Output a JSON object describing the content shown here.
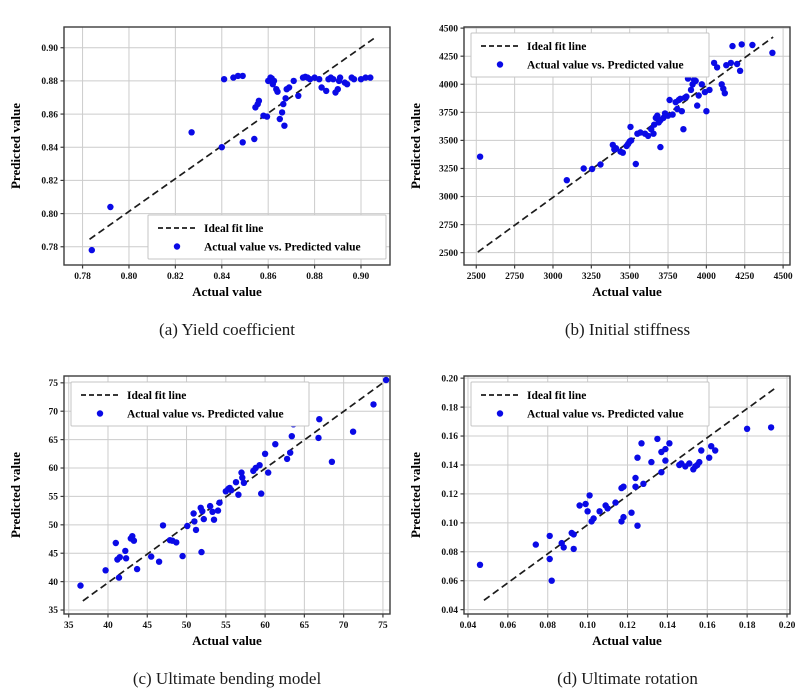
{
  "figure": {
    "background": "#ffffff",
    "description": "2x2 grid of scatter subplots comparing actual vs predicted values"
  },
  "colors": {
    "dot": "#0a0ae6",
    "ideal_line": "#1c1c1c",
    "grid": "#cccccc",
    "spine": "#3c3c3c",
    "tick": "#333333",
    "legend_border": "#c4c4c4",
    "plot_bg": "#ffffff"
  },
  "chart_data": [
    {
      "type": "scatter",
      "caption": "(a) Yield coefficient",
      "xlabel": "Actual value",
      "ylabel": "Predicted value",
      "xlim": [
        0.772,
        0.9125
      ],
      "ylim": [
        0.769,
        0.9125
      ],
      "xticks": [
        0.78,
        0.8,
        0.82,
        0.84,
        0.86,
        0.88,
        0.9
      ],
      "xtick_labels": [
        "0.78",
        "0.80",
        "0.82",
        "0.84",
        "0.86",
        "0.88",
        "0.90"
      ],
      "yticks": [
        0.78,
        0.8,
        0.82,
        0.84,
        0.86,
        0.88,
        0.9
      ],
      "ytick_labels": [
        "0.78",
        "0.80",
        "0.82",
        "0.84",
        "0.86",
        "0.88",
        "0.90"
      ],
      "grid": true,
      "legend": {
        "position": "lower right",
        "items": [
          "Ideal fit line",
          "Actual value vs. Predicted value"
        ]
      },
      "ideal_line": [
        [
          0.783,
          0.7845
        ],
        [
          0.9055,
          0.9055
        ]
      ],
      "points": [
        [
          0.784,
          0.778
        ],
        [
          0.792,
          0.804
        ],
        [
          0.827,
          0.849
        ],
        [
          0.84,
          0.84
        ],
        [
          0.841,
          0.881
        ],
        [
          0.845,
          0.882
        ],
        [
          0.847,
          0.883
        ],
        [
          0.849,
          0.883
        ],
        [
          0.849,
          0.843
        ],
        [
          0.854,
          0.845
        ],
        [
          0.8545,
          0.864
        ],
        [
          0.8555,
          0.866
        ],
        [
          0.856,
          0.868
        ],
        [
          0.858,
          0.859
        ],
        [
          0.8595,
          0.8585
        ],
        [
          0.86,
          0.88
        ],
        [
          0.861,
          0.882
        ],
        [
          0.8615,
          0.8815
        ],
        [
          0.862,
          0.878
        ],
        [
          0.8625,
          0.88
        ],
        [
          0.8635,
          0.875
        ],
        [
          0.864,
          0.8735
        ],
        [
          0.865,
          0.857
        ],
        [
          0.866,
          0.861
        ],
        [
          0.867,
          0.853
        ],
        [
          0.8665,
          0.866
        ],
        [
          0.8675,
          0.8695
        ],
        [
          0.868,
          0.875
        ],
        [
          0.869,
          0.876
        ],
        [
          0.871,
          0.88
        ],
        [
          0.873,
          0.871
        ],
        [
          0.875,
          0.882
        ],
        [
          0.876,
          0.8825
        ],
        [
          0.877,
          0.882
        ],
        [
          0.878,
          0.881
        ],
        [
          0.88,
          0.882
        ],
        [
          0.882,
          0.881
        ],
        [
          0.883,
          0.876
        ],
        [
          0.885,
          0.874
        ],
        [
          0.886,
          0.881
        ],
        [
          0.887,
          0.882
        ],
        [
          0.888,
          0.881
        ],
        [
          0.889,
          0.873
        ],
        [
          0.89,
          0.875
        ],
        [
          0.8905,
          0.88
        ],
        [
          0.891,
          0.882
        ],
        [
          0.893,
          0.879
        ],
        [
          0.894,
          0.878
        ],
        [
          0.896,
          0.882
        ],
        [
          0.897,
          0.881
        ],
        [
          0.9,
          0.881
        ],
        [
          0.902,
          0.882
        ],
        [
          0.904,
          0.882
        ]
      ]
    },
    {
      "type": "scatter",
      "caption": "(b) Initial stiffness",
      "xlabel": "Actual value",
      "ylabel": "Predicted value",
      "xlim": [
        2420,
        4545
      ],
      "ylim": [
        2390,
        4510
      ],
      "xticks": [
        2500,
        2750,
        3000,
        3250,
        3500,
        3750,
        4000,
        4250,
        4500
      ],
      "xtick_labels": [
        "2500",
        "2750",
        "3000",
        "3250",
        "3500",
        "3750",
        "4000",
        "4250",
        "4500"
      ],
      "yticks": [
        2500,
        2750,
        3000,
        3250,
        3500,
        3750,
        4000,
        4250,
        4500
      ],
      "ytick_labels": [
        "2500",
        "2750",
        "3000",
        "3250",
        "3500",
        "3750",
        "4000",
        "4250",
        "4500"
      ],
      "grid": true,
      "legend": {
        "position": "upper left",
        "items": [
          "Ideal fit line",
          "Actual value vs. Predicted value"
        ]
      },
      "ideal_line": [
        [
          2510,
          2505
        ],
        [
          4435,
          4420
        ]
      ],
      "points": [
        [
          2525,
          3355
        ],
        [
          3090,
          3145
        ],
        [
          3200,
          3250
        ],
        [
          3255,
          3245
        ],
        [
          3310,
          3285
        ],
        [
          3390,
          3460
        ],
        [
          3400,
          3420
        ],
        [
          3410,
          3430
        ],
        [
          3440,
          3400
        ],
        [
          3455,
          3390
        ],
        [
          3505,
          3620
        ],
        [
          3480,
          3450
        ],
        [
          3490,
          3470
        ],
        [
          3500,
          3490
        ],
        [
          3510,
          3500
        ],
        [
          3540,
          3290
        ],
        [
          3550,
          3560
        ],
        [
          3570,
          3570
        ],
        [
          3600,
          3560
        ],
        [
          3620,
          3540
        ],
        [
          3640,
          3600
        ],
        [
          3655,
          3560
        ],
        [
          3660,
          3640
        ],
        [
          3670,
          3700
        ],
        [
          3680,
          3720
        ],
        [
          3690,
          3660
        ],
        [
          3700,
          3680
        ],
        [
          3700,
          3440
        ],
        [
          3720,
          3700
        ],
        [
          3730,
          3740
        ],
        [
          3750,
          3720
        ],
        [
          3760,
          3860
        ],
        [
          3780,
          3730
        ],
        [
          3800,
          3840
        ],
        [
          3810,
          3780
        ],
        [
          3820,
          3860
        ],
        [
          3830,
          3870
        ],
        [
          3840,
          3760
        ],
        [
          3850,
          3600
        ],
        [
          3860,
          3880
        ],
        [
          3870,
          3890
        ],
        [
          3880,
          4050
        ],
        [
          3900,
          3950
        ],
        [
          3910,
          4000
        ],
        [
          3920,
          4040
        ],
        [
          3930,
          4030
        ],
        [
          3940,
          3810
        ],
        [
          3950,
          3900
        ],
        [
          3970,
          4000
        ],
        [
          3990,
          3930
        ],
        [
          4000,
          3760
        ],
        [
          4020,
          3950
        ],
        [
          4050,
          4190
        ],
        [
          4070,
          4150
        ],
        [
          4100,
          4000
        ],
        [
          4110,
          3960
        ],
        [
          4120,
          3920
        ],
        [
          4130,
          4170
        ],
        [
          4160,
          4190
        ],
        [
          4170,
          4340
        ],
        [
          4200,
          4180
        ],
        [
          4220,
          4120
        ],
        [
          4230,
          4355
        ],
        [
          4300,
          4350
        ],
        [
          4430,
          4280
        ]
      ]
    },
    {
      "type": "scatter",
      "caption": "(c) Ultimate bending model",
      "xlabel": "Actual value",
      "ylabel": "Predicted value",
      "xlim": [
        34.4,
        75.9
      ],
      "ylim": [
        34.3,
        76.2
      ],
      "xticks": [
        35,
        40,
        45,
        50,
        55,
        60,
        65,
        70,
        75
      ],
      "xtick_labels": [
        "35",
        "40",
        "45",
        "50",
        "55",
        "60",
        "65",
        "70",
        "75"
      ],
      "yticks": [
        35,
        40,
        45,
        50,
        55,
        60,
        65,
        70,
        75
      ],
      "ytick_labels": [
        "35",
        "40",
        "45",
        "50",
        "55",
        "60",
        "65",
        "70",
        "75"
      ],
      "grid": true,
      "legend": {
        "position": "upper left",
        "items": [
          "Ideal fit line",
          "Actual value vs. Predicted value"
        ]
      },
      "ideal_line": [
        [
          36.8,
          36.6
        ],
        [
          75.6,
          75.6
        ]
      ],
      "points": [
        [
          36.5,
          39.3
        ],
        [
          39.7,
          42.0
        ],
        [
          41.0,
          46.8
        ],
        [
          41.2,
          43.9
        ],
        [
          41.5,
          44.3
        ],
        [
          41.4,
          40.7
        ],
        [
          42.3,
          44.1
        ],
        [
          42.2,
          45.4
        ],
        [
          42.9,
          47.6
        ],
        [
          43.1,
          48.0
        ],
        [
          43.3,
          47.2
        ],
        [
          43.7,
          42.2
        ],
        [
          45.5,
          44.4
        ],
        [
          46.5,
          43.5
        ],
        [
          47.0,
          49.9
        ],
        [
          47.9,
          47.3
        ],
        [
          48.2,
          47.2
        ],
        [
          48.7,
          46.9
        ],
        [
          49.5,
          44.5
        ],
        [
          50.1,
          49.8
        ],
        [
          50.9,
          52.0
        ],
        [
          51.0,
          50.6
        ],
        [
          51.2,
          49.1
        ],
        [
          51.8,
          53.0
        ],
        [
          52.0,
          52.4
        ],
        [
          52.2,
          51.0
        ],
        [
          51.9,
          45.2
        ],
        [
          53.0,
          53.3
        ],
        [
          53.3,
          52.3
        ],
        [
          53.5,
          50.9
        ],
        [
          54.0,
          52.5
        ],
        [
          54.2,
          53.9
        ],
        [
          55.0,
          55.9
        ],
        [
          55.3,
          56.3
        ],
        [
          55.5,
          56.5
        ],
        [
          55.7,
          56.1
        ],
        [
          56.3,
          57.5
        ],
        [
          56.6,
          55.3
        ],
        [
          57.0,
          59.2
        ],
        [
          57.1,
          58.3
        ],
        [
          57.3,
          57.4
        ],
        [
          58.5,
          59.5
        ],
        [
          58.8,
          60.0
        ],
        [
          59.3,
          60.5
        ],
        [
          59.5,
          55.5
        ],
        [
          60.0,
          62.5
        ],
        [
          60.4,
          59.2
        ],
        [
          61.3,
          64.2
        ],
        [
          62.8,
          61.6
        ],
        [
          63.2,
          62.7
        ],
        [
          63.4,
          65.6
        ],
        [
          63.6,
          67.7
        ],
        [
          66.8,
          65.3
        ],
        [
          66.9,
          68.6
        ],
        [
          68.5,
          61.1
        ],
        [
          71.2,
          66.4
        ],
        [
          73.8,
          71.2
        ],
        [
          75.4,
          75.5
        ]
      ]
    },
    {
      "type": "scatter",
      "caption": "(d) Ultimate rotation",
      "xlabel": "Actual value",
      "ylabel": "Predicted value",
      "xlim": [
        0.038,
        0.2015
      ],
      "ylim": [
        0.037,
        0.2015
      ],
      "xticks": [
        0.04,
        0.06,
        0.08,
        0.1,
        0.12,
        0.14,
        0.16,
        0.18,
        0.2
      ],
      "xtick_labels": [
        "0.04",
        "0.06",
        "0.08",
        "0.10",
        "0.12",
        "0.14",
        "0.16",
        "0.18",
        "0.20"
      ],
      "yticks": [
        0.04,
        0.06,
        0.08,
        0.1,
        0.12,
        0.14,
        0.16,
        0.18,
        0.2
      ],
      "ytick_labels": [
        "0.04",
        "0.06",
        "0.08",
        "0.10",
        "0.12",
        "0.14",
        "0.16",
        "0.18",
        "0.20"
      ],
      "grid": true,
      "legend": {
        "position": "upper left",
        "items": [
          "Ideal fit line",
          "Actual value vs. Predicted value"
        ]
      },
      "ideal_line": [
        [
          0.048,
          0.0465
        ],
        [
          0.194,
          0.193
        ]
      ],
      "points": [
        [
          0.046,
          0.071
        ],
        [
          0.074,
          0.085
        ],
        [
          0.081,
          0.091
        ],
        [
          0.081,
          0.075
        ],
        [
          0.082,
          0.06
        ],
        [
          0.087,
          0.086
        ],
        [
          0.088,
          0.083
        ],
        [
          0.092,
          0.093
        ],
        [
          0.093,
          0.092
        ],
        [
          0.093,
          0.082
        ],
        [
          0.096,
          0.112
        ],
        [
          0.099,
          0.113
        ],
        [
          0.1,
          0.108
        ],
        [
          0.101,
          0.119
        ],
        [
          0.102,
          0.101
        ],
        [
          0.103,
          0.103
        ],
        [
          0.106,
          0.108
        ],
        [
          0.109,
          0.112
        ],
        [
          0.11,
          0.11
        ],
        [
          0.114,
          0.114
        ],
        [
          0.117,
          0.124
        ],
        [
          0.118,
          0.125
        ],
        [
          0.118,
          0.104
        ],
        [
          0.117,
          0.101
        ],
        [
          0.122,
          0.107
        ],
        [
          0.124,
          0.131
        ],
        [
          0.124,
          0.125
        ],
        [
          0.125,
          0.098
        ],
        [
          0.125,
          0.145
        ],
        [
          0.127,
          0.155
        ],
        [
          0.128,
          0.127
        ],
        [
          0.135,
          0.158
        ],
        [
          0.139,
          0.151
        ],
        [
          0.141,
          0.155
        ],
        [
          0.137,
          0.149
        ],
        [
          0.139,
          0.143
        ],
        [
          0.132,
          0.142
        ],
        [
          0.137,
          0.135
        ],
        [
          0.146,
          0.14
        ],
        [
          0.147,
          0.141
        ],
        [
          0.149,
          0.139
        ],
        [
          0.151,
          0.141
        ],
        [
          0.153,
          0.137
        ],
        [
          0.154,
          0.139
        ],
        [
          0.155,
          0.14
        ],
        [
          0.156,
          0.142
        ],
        [
          0.157,
          0.15
        ],
        [
          0.161,
          0.145
        ],
        [
          0.162,
          0.153
        ],
        [
          0.164,
          0.15
        ],
        [
          0.18,
          0.165
        ],
        [
          0.192,
          0.166
        ]
      ]
    }
  ]
}
